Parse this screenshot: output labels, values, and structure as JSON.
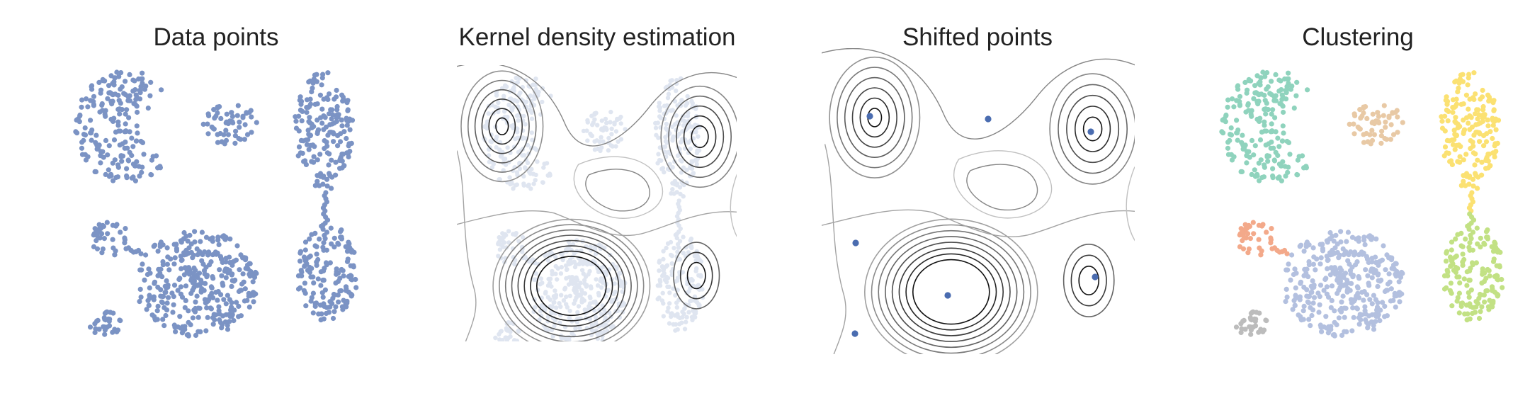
{
  "panels": [
    {
      "id": "data-points",
      "title": "Data points"
    },
    {
      "id": "kde",
      "title": "Kernel density estimation"
    },
    {
      "id": "shifted",
      "title": "Shifted points"
    },
    {
      "id": "clustering",
      "title": "Clustering"
    }
  ],
  "colors": {
    "points": "#7b93c4",
    "faint_points": "#dfe5f0",
    "modes": "#4a6cb0",
    "contour_dark": "#111111",
    "contour_light": "#dddddd",
    "clusters": [
      "#8fd3bd",
      "#e8c9a5",
      "#fbe172",
      "#f3a98a",
      "#b3c0df",
      "#c2e184",
      "#bcbcbc"
    ]
  }
}
